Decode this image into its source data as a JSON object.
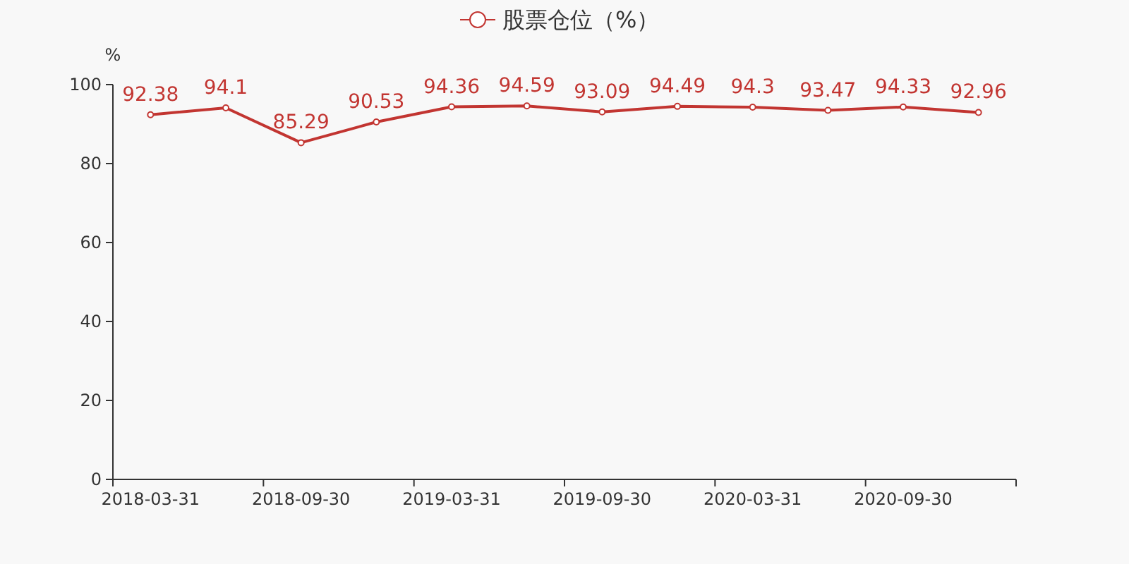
{
  "chart_data": {
    "type": "line",
    "ylabel": "%",
    "legend": "top",
    "categories": [
      "2018-03-31",
      null,
      "2018-09-30",
      null,
      "2019-03-31",
      null,
      "2019-09-30",
      null,
      "2020-03-31",
      null,
      "2020-09-30",
      null
    ],
    "series": [
      {
        "name": "股票仓位（%）",
        "color": "#c23531",
        "values": [
          92.38,
          94.1,
          85.29,
          90.53,
          94.36,
          94.59,
          93.09,
          94.49,
          94.3,
          93.47,
          94.33,
          92.96
        ]
      }
    ],
    "ylim": [
      0,
      100
    ],
    "yticks": [
      0,
      20,
      40,
      60,
      80,
      100
    ],
    "grid": false,
    "marker": "circle",
    "data_labels": true
  }
}
